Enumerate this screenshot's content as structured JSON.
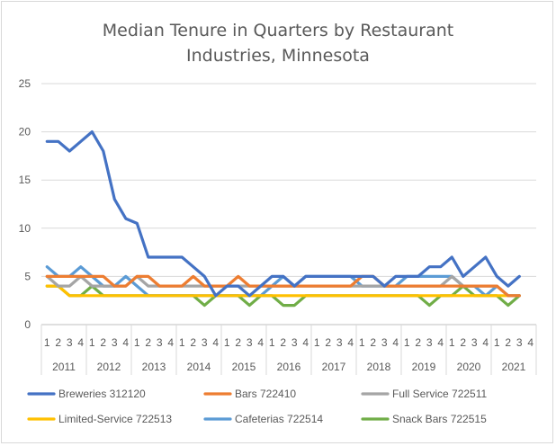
{
  "chart_data": {
    "type": "line",
    "title_lines": [
      "Median Tenure in Quarters by Restaurant",
      "Industries, Minnesota"
    ],
    "ylim": [
      0,
      25
    ],
    "yticks": [
      "0",
      "5",
      "10",
      "15",
      "20",
      "25"
    ],
    "x_quarter_labels": [
      "1",
      "2",
      "3",
      "4",
      "1",
      "2",
      "3",
      "4",
      "1",
      "2",
      "3",
      "4",
      "1",
      "2",
      "3",
      "4",
      "1",
      "2",
      "3",
      "4",
      "1",
      "2",
      "3",
      "4",
      "1",
      "2",
      "3",
      "4",
      "1",
      "2",
      "3",
      "4",
      "1",
      "2",
      "3",
      "4",
      "1",
      "2",
      "3",
      "4",
      "1",
      "2",
      "3",
      "4"
    ],
    "x_year_labels": [
      "2011",
      "2012",
      "2013",
      "2014",
      "2015",
      "2016",
      "2017",
      "2018",
      "2019",
      "2020",
      "2021"
    ],
    "grid": "horizontal",
    "legend_position": "bottom",
    "series": [
      {
        "name": "Breweries 312120",
        "color": "#4472C4",
        "values": [
          19,
          19,
          18,
          19,
          20,
          18,
          13,
          11,
          10.5,
          7,
          7,
          7,
          7,
          6,
          5,
          3,
          4,
          4,
          3,
          4,
          5,
          5,
          4,
          5,
          5,
          5,
          5,
          5,
          5,
          5,
          4,
          5,
          5,
          5,
          6,
          6,
          7,
          5,
          6,
          7,
          5,
          4,
          5
        ]
      },
      {
        "name": "Bars 722410",
        "color": "#ED7D31",
        "values": [
          5,
          5,
          5,
          5,
          5,
          5,
          4,
          4,
          5,
          5,
          4,
          4,
          4,
          5,
          4,
          4,
          4,
          5,
          4,
          4,
          4,
          4,
          4,
          4,
          4,
          4,
          4,
          4,
          5,
          5,
          4,
          4,
          4,
          4,
          4,
          4,
          4,
          4,
          4,
          4,
          4,
          3,
          3
        ]
      },
      {
        "name": "Full Service 722511",
        "color": "#A5A5A5",
        "values": [
          5,
          4,
          4,
          5,
          4,
          4,
          4,
          4,
          5,
          4,
          4,
          4,
          4,
          4,
          4,
          4,
          4,
          4,
          4,
          4,
          4,
          4,
          4,
          4,
          4,
          4,
          4,
          4,
          4,
          4,
          4,
          4,
          4,
          4,
          4,
          4,
          5,
          4,
          4,
          4,
          4,
          3,
          3
        ]
      },
      {
        "name": "Limited-Service 722513",
        "color": "#FFC000",
        "values": [
          4,
          4,
          3,
          3,
          3,
          3,
          3,
          3,
          3,
          3,
          3,
          3,
          3,
          3,
          3,
          3,
          3,
          3,
          3,
          3,
          3,
          3,
          3,
          3,
          3,
          3,
          3,
          3,
          3,
          3,
          3,
          3,
          3,
          3,
          3,
          3,
          3,
          3,
          3,
          3,
          3,
          3,
          3
        ]
      },
      {
        "name": "Cafeterias 722514",
        "color": "#5B9BD5",
        "values": [
          6,
          5,
          5,
          6,
          5,
          4,
          4,
          5,
          4,
          3,
          3,
          3,
          3,
          3,
          3,
          3,
          3,
          3,
          3,
          3,
          4,
          5,
          4,
          5,
          5,
          5,
          5,
          5,
          4,
          4,
          4,
          4,
          5,
          5,
          5,
          5,
          5,
          4,
          4,
          3,
          4,
          3,
          3
        ]
      },
      {
        "name": "Snack Bars 722515",
        "color": "#70AD47",
        "values": [
          4,
          4,
          3,
          3,
          4,
          3,
          3,
          3,
          3,
          3,
          3,
          3,
          3,
          3,
          2,
          3,
          3,
          3,
          2,
          3,
          3,
          2,
          2,
          3,
          3,
          3,
          3,
          3,
          3,
          3,
          3,
          3,
          3,
          3,
          2,
          3,
          3,
          4,
          3,
          3,
          3,
          2,
          3
        ]
      }
    ]
  }
}
